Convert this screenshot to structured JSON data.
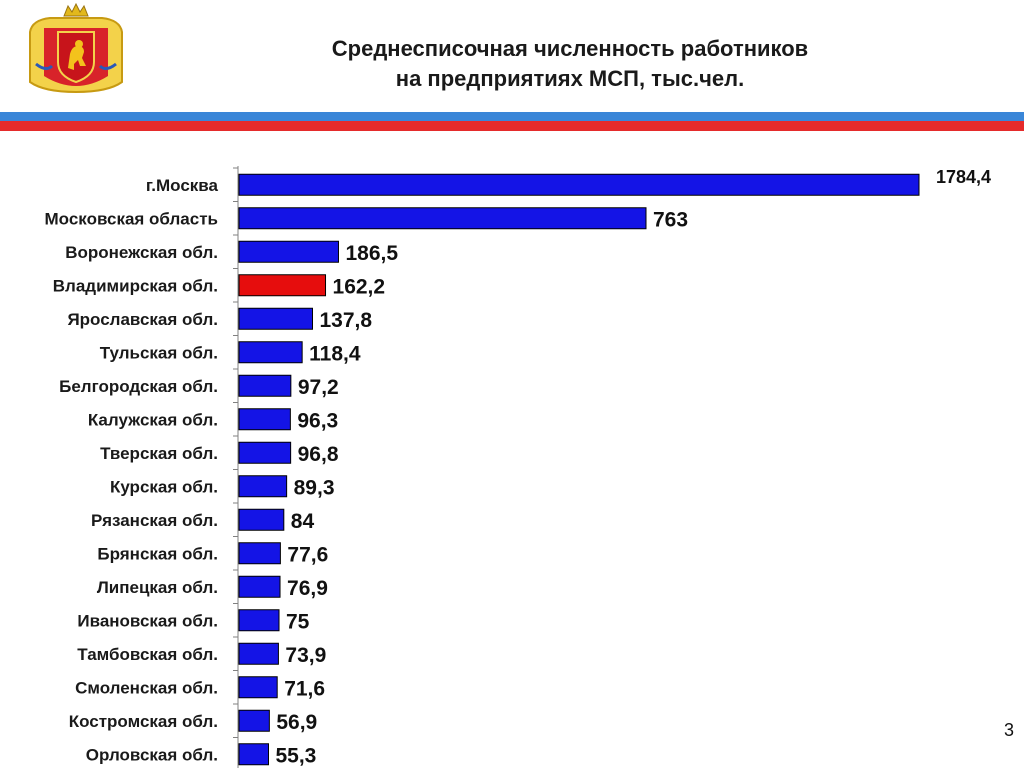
{
  "slide": {
    "title_line1": "Среднесписочная численность работников",
    "title_line2": "на предприятиях МСП, тыс.чел.",
    "page_number": "3",
    "emblem_icon": "vladimir-region-coat-of-arms-icon"
  },
  "colors": {
    "bar": "#1414e6",
    "highlight": "#e60d0d",
    "stripe_blue": "#3a86d8",
    "stripe_red": "#e52b2b"
  },
  "chart_data": {
    "type": "bar",
    "orientation": "horizontal",
    "title": "Среднесписочная численность работников на предприятиях МСП, тыс.чел.",
    "categories": [
      "г.Москва",
      "Московская область",
      "Воронежская обл.",
      "Владимирская обл.",
      "Ярославская обл.",
      "Тульская обл.",
      "Белгородская обл.",
      "Калужская обл.",
      "Тверская обл.",
      "Курская обл.",
      "Рязанская обл.",
      "Брянская обл.",
      "Липецкая обл.",
      "Ивановская обл.",
      "Тамбовская обл.",
      "Смоленская обл.",
      "Костромская обл.",
      "Орловская обл."
    ],
    "values": [
      1784.4,
      763,
      186.5,
      162.2,
      137.8,
      118.4,
      97.2,
      96.3,
      96.8,
      89.3,
      84,
      77.6,
      76.9,
      75,
      73.9,
      71.6,
      56.9,
      55.3
    ],
    "value_labels": [
      "1784,4",
      "763",
      "186,5",
      "162,2",
      "137,8",
      "118,4",
      "97,2",
      "96,3",
      "96,8",
      "89,3",
      "84",
      "77,6",
      "76,9",
      "75",
      "73,9",
      "71,6",
      "56,9",
      "55,3"
    ],
    "highlight_category": "Владимирская обл.",
    "axis_break": true,
    "grid": false,
    "legend": "none"
  }
}
